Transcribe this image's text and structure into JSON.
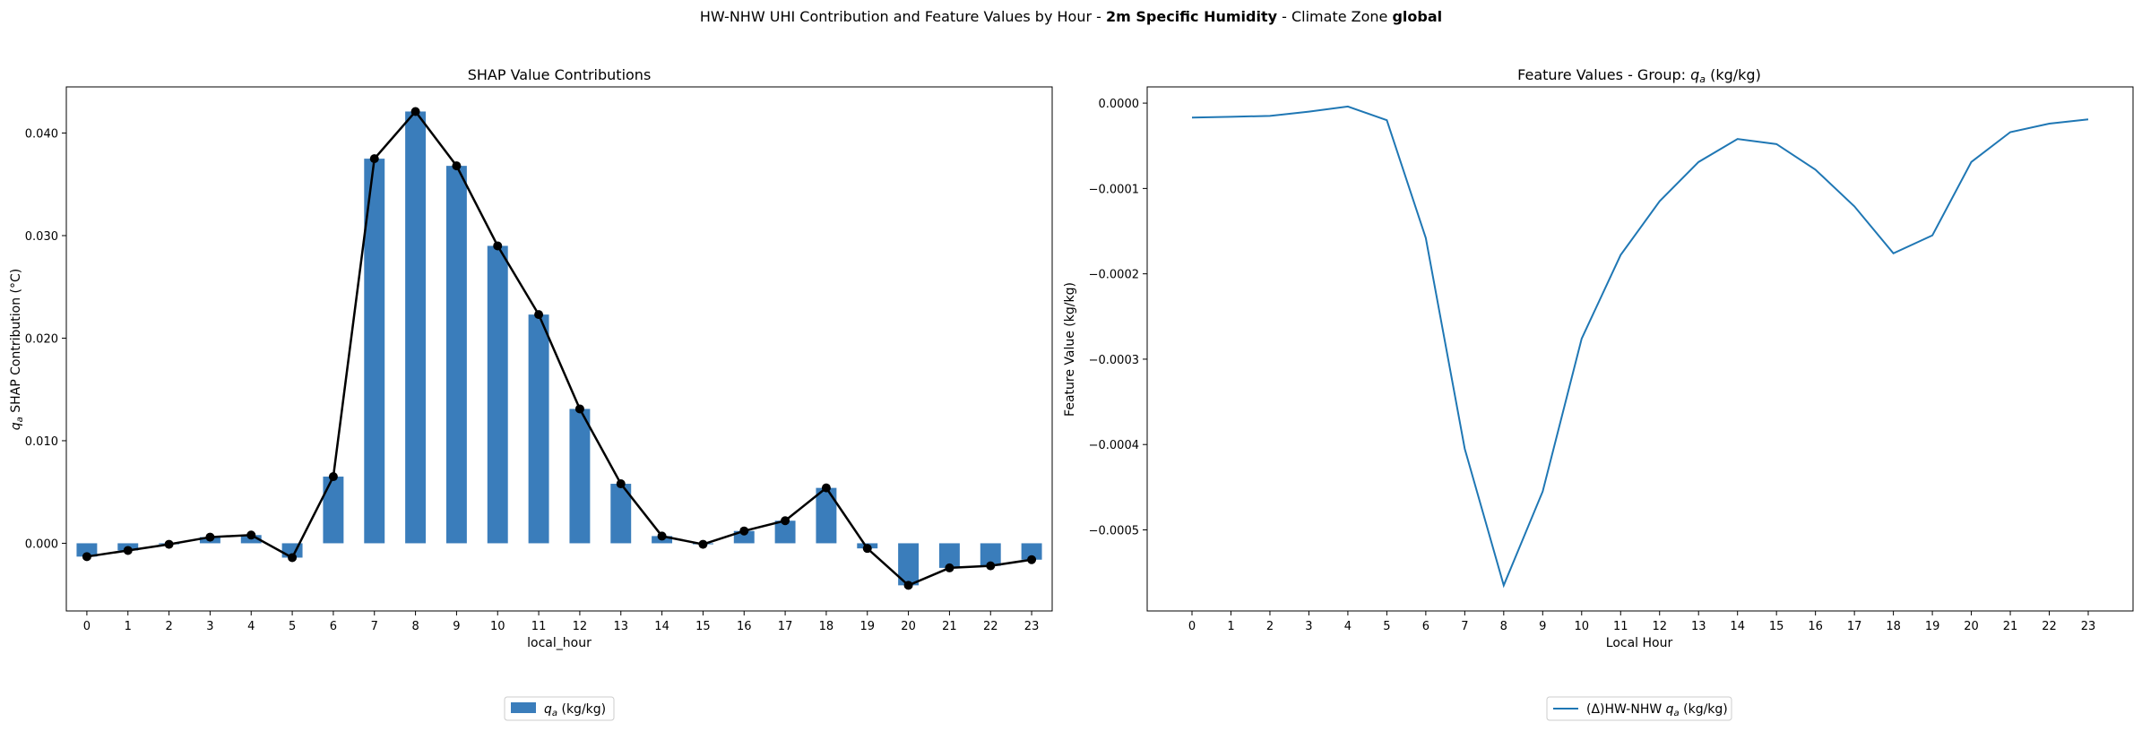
{
  "suptitle": {
    "prefix": "HW-NHW UHI Contribution and Feature Values by Hour - ",
    "variable": "2m Specific Humidity",
    "middle": " - Climate Zone ",
    "zone": "global"
  },
  "chart_data": [
    {
      "type": "bar",
      "title": "SHAP Value Contributions",
      "xlabel": "local_hour",
      "ylabel_symbol": "q",
      "ylabel_sub": "a",
      "ylabel_rest": " SHAP Contribution (°C)",
      "categories": [
        "0",
        "1",
        "2",
        "3",
        "4",
        "5",
        "6",
        "7",
        "8",
        "9",
        "10",
        "11",
        "12",
        "13",
        "14",
        "15",
        "16",
        "17",
        "18",
        "19",
        "20",
        "21",
        "22",
        "23"
      ],
      "values": [
        -0.0013,
        -0.0007,
        -0.0001,
        0.0006,
        0.0008,
        -0.0014,
        0.0065,
        0.0375,
        0.0421,
        0.0368,
        0.029,
        0.0223,
        0.0131,
        0.0058,
        0.0007,
        -0.0001,
        0.0012,
        0.0022,
        0.0054,
        -0.0005,
        -0.0041,
        -0.0024,
        -0.0022,
        -0.0016
      ],
      "ylim": [
        -0.0066,
        0.0445
      ],
      "yticks": [
        "0.000",
        "0.010",
        "0.020",
        "0.030",
        "0.040"
      ],
      "ytick_values": [
        0,
        0.01,
        0.02,
        0.03,
        0.04
      ],
      "legend_position": "bottom-center",
      "legend": {
        "symbol": "q",
        "sub": "a",
        "rest": " (kg/kg)"
      },
      "bar_color": "#3a7dbb",
      "line_color": "#000000"
    },
    {
      "type": "line",
      "title_prefix": "Feature Values - Group: ",
      "title_symbol": "q",
      "title_sub": "a",
      "title_rest": " (kg/kg)",
      "xlabel": "Local Hour",
      "ylabel": "Feature Value (kg/kg)",
      "x": [
        0,
        1,
        2,
        3,
        4,
        5,
        6,
        7,
        8,
        9,
        10,
        11,
        12,
        13,
        14,
        15,
        16,
        17,
        18,
        19,
        20,
        21,
        22,
        23
      ],
      "values": [
        -1.7e-05,
        -1.6e-05,
        -1.5e-05,
        -1e-05,
        -4e-06,
        -2e-05,
        -0.000158,
        -0.000405,
        -0.000565,
        -0.000455,
        -0.000276,
        -0.000178,
        -0.000115,
        -6.9e-05,
        -4.2e-05,
        -4.8e-05,
        -7.8e-05,
        -0.000121,
        -0.000176,
        -0.000155,
        -6.9e-05,
        -3.4e-05,
        -2.4e-05,
        -1.9e-05
      ],
      "ylim": [
        -0.000595,
        1.9e-05
      ],
      "yticks": [
        "0.0000",
        "−0.0001",
        "−0.0002",
        "−0.0003",
        "−0.0004",
        "−0.0005"
      ],
      "ytick_values": [
        0,
        -0.0001,
        -0.0002,
        -0.0003,
        -0.0004,
        -0.0005
      ],
      "legend_position": "bottom-center",
      "legend": {
        "prefix": "(Δ)HW-NHW ",
        "symbol": "q",
        "sub": "a",
        "rest": " (kg/kg)"
      },
      "line_color": "#1f77b4"
    }
  ]
}
